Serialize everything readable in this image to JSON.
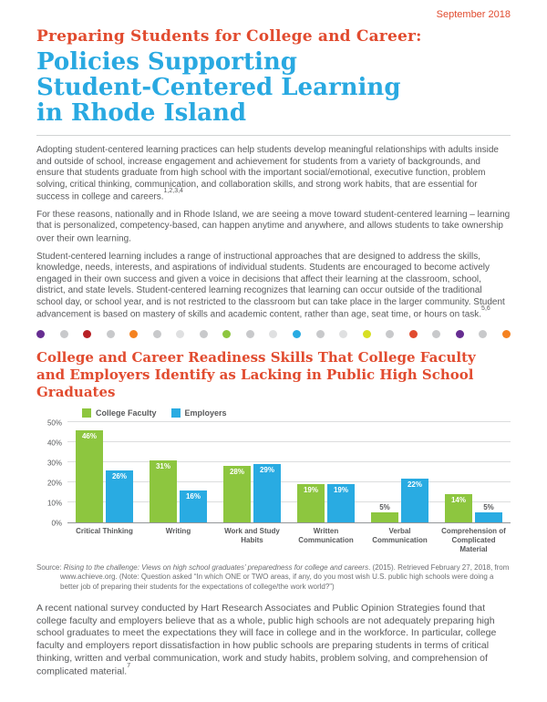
{
  "page": {
    "date": "September 2018",
    "title_kicker": "Preparing Students for College and Career:",
    "title_main": "Policies Supporting Student-Centered Learning in Rhode Island"
  },
  "colors": {
    "accent_red": "#E14B2F",
    "accent_blue": "#29A9E1",
    "bar_green": "#8DC63F",
    "bar_blue": "#29ABE2"
  },
  "paragraphs": [
    {
      "text": "Adopting student-centered learning practices can help students develop meaningful relationships with adults inside and outside of school, increase engagement and achievement for students from a variety of backgrounds, and ensure that students graduate from high school with the important social/emotional, executive function, problem solving, critical thinking, communication, and collaboration skills, and strong work habits, that are essential for success in college and careers.",
      "sup": "1,2,3,4"
    },
    {
      "text": "For these reasons, nationally and in Rhode Island, we are seeing a move toward student-centered learning – learning that is personalized, competency-based, can happen anytime and anywhere, and allows students to take ownership over their own learning.",
      "sup": ""
    },
    {
      "text": "Student-centered learning includes a range of instructional approaches that are designed to address the skills, knowledge, needs, interests, and aspirations of individual students. Students are encouraged to become actively engaged in their own success and given a voice in decisions that affect their learning at the classroom, school, district, and state levels. Student-centered learning recognizes that learning can occur outside of the traditional school day, or school year, and is not restricted to the classroom but can take place in the larger community. Student advancement is based on mastery of skills and academic content, rather than age, seat time, or hours on task.",
      "sup": "5,6"
    }
  ],
  "dots": [
    "#662D91",
    "#C8C9CB",
    "#B72025",
    "#C8C9CB",
    "#F58220",
    "#C8C9CB",
    "#DFE0E1",
    "#C8C9CB",
    "#8DC63F",
    "#C8C9CB",
    "#DFE0E1",
    "#29ABE2",
    "#C8C9CB",
    "#DFE0E1",
    "#D7DF23",
    "#C8C9CB",
    "#E14B2F",
    "#C8C9CB",
    "#662D91",
    "#C8C9CB",
    "#F58220"
  ],
  "chart_section": {
    "heading": "College and Career Readiness Skills That College Faculty and Employers Identify as Lacking in Public High School Graduates",
    "source": {
      "prefix": "Source: ",
      "cite": "Rising to the challenge: Views on high school graduates’ preparedness for college and careers",
      "rest": ". (2015). Retrieved February 27, 2018, from www.achieve.org. (Note: Question asked “In which ONE or TWO areas, if any, do you most wish U.S. public high schools were doing a better job of preparing their students for the expectations of college/the work world?”)"
    }
  },
  "chart_data": {
    "type": "bar",
    "title": "College and Career Readiness Skills That College Faculty and Employers Identify as Lacking in Public High School Graduates",
    "categories": [
      "Critical Thinking",
      "Writing",
      "Work and Study Habits",
      "Written Communication",
      "Verbal Communication",
      "Comprehension of Complicated Material"
    ],
    "series": [
      {
        "name": "College Faculty",
        "color": "#8DC63F",
        "values": [
          46,
          31,
          28,
          19,
          5,
          14
        ]
      },
      {
        "name": "Employers",
        "color": "#29ABE2",
        "values": [
          26,
          16,
          29,
          19,
          22,
          5
        ]
      }
    ],
    "xlabel": "",
    "ylabel": "",
    "ylim": [
      0,
      50
    ],
    "ytick_step": 10,
    "ytick_format": "percent",
    "grid": true,
    "legend_position": "top-left",
    "value_labels": true
  },
  "closing_paragraph": {
    "text": "A recent national survey conducted by Hart Research Associates and Public Opinion Strategies found that college faculty and employers believe that as a whole, public high schools are not adequately preparing high school graduates to meet the expectations they will face in college and in the workforce. In particular, college faculty and employers report dissatisfaction in how public schools are preparing students in terms of critical thinking, written and verbal communication, work and study habits, problem solving, and comprehension of complicated material.",
    "sup": "7"
  }
}
